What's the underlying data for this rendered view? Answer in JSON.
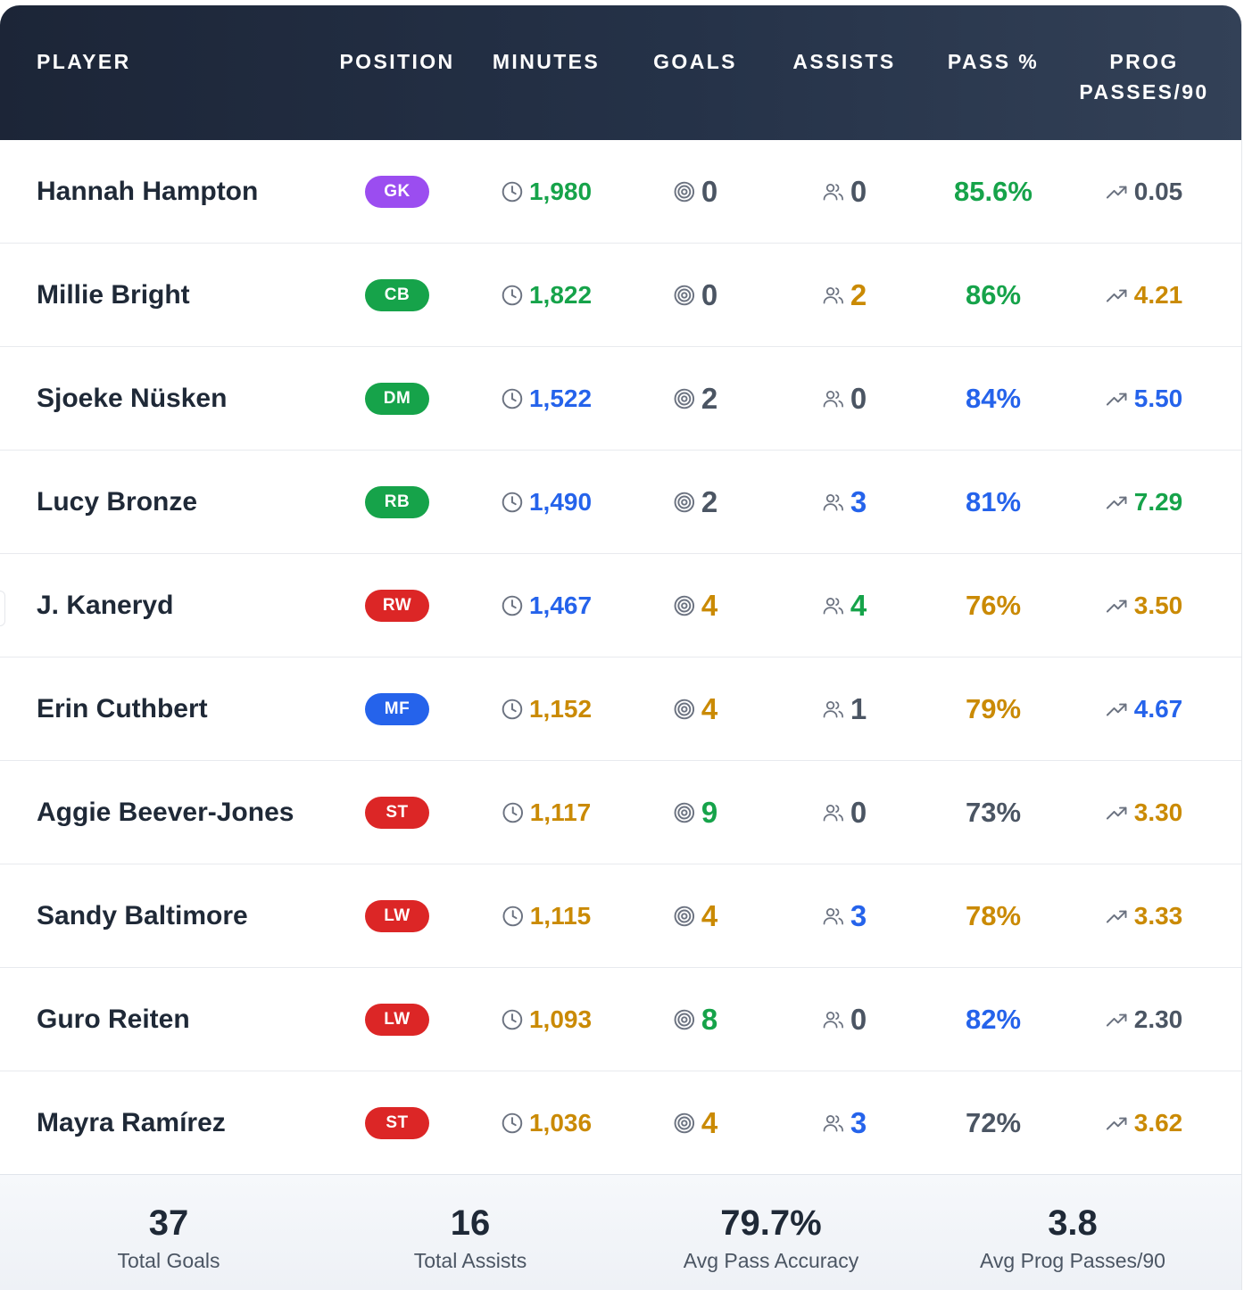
{
  "colors": {
    "green": "#16a34a",
    "blue": "#2563eb",
    "gold": "#ca8a04",
    "gray": "#4b5563",
    "badge_GK": "#9b4df0",
    "badge_CB": "#16a34a",
    "badge_DM": "#16a34a",
    "badge_RB": "#16a34a",
    "badge_RW": "#dc2626",
    "badge_MF": "#2563eb",
    "badge_ST": "#dc2626",
    "badge_LW": "#dc2626"
  },
  "icons": {
    "minutes": "clock-icon",
    "goals": "target-icon",
    "assists": "users-icon",
    "prog": "trending-up-icon"
  },
  "columns": {
    "player": "PLAYER",
    "position": "POSITION",
    "minutes": "MINUTES",
    "goals": "GOALS",
    "assists": "ASSISTS",
    "pass": "PASS %",
    "prog": "PROG PASSES/90"
  },
  "rows": [
    {
      "name": "Hannah Hampton",
      "position": "GK",
      "minutes": "1,980",
      "minutes_color": "green",
      "goals": "0",
      "goals_color": "gray",
      "assists": "0",
      "assists_color": "gray",
      "pass": "85.6%",
      "pass_color": "green",
      "prog": "0.05",
      "prog_color": "gray"
    },
    {
      "name": "Millie Bright",
      "position": "CB",
      "minutes": "1,822",
      "minutes_color": "green",
      "goals": "0",
      "goals_color": "gray",
      "assists": "2",
      "assists_color": "gold",
      "pass": "86%",
      "pass_color": "green",
      "prog": "4.21",
      "prog_color": "gold"
    },
    {
      "name": "Sjoeke Nüsken",
      "position": "DM",
      "minutes": "1,522",
      "minutes_color": "blue",
      "goals": "2",
      "goals_color": "gray",
      "assists": "0",
      "assists_color": "gray",
      "pass": "84%",
      "pass_color": "blue",
      "prog": "5.50",
      "prog_color": "blue"
    },
    {
      "name": "Lucy Bronze",
      "position": "RB",
      "minutes": "1,490",
      "minutes_color": "blue",
      "goals": "2",
      "goals_color": "gray",
      "assists": "3",
      "assists_color": "blue",
      "pass": "81%",
      "pass_color": "blue",
      "prog": "7.29",
      "prog_color": "green"
    },
    {
      "name": "J. Kaneryd",
      "position": "RW",
      "minutes": "1,467",
      "minutes_color": "blue",
      "goals": "4",
      "goals_color": "gold",
      "assists": "4",
      "assists_color": "green",
      "pass": "76%",
      "pass_color": "gold",
      "prog": "3.50",
      "prog_color": "gold"
    },
    {
      "name": "Erin Cuthbert",
      "position": "MF",
      "minutes": "1,152",
      "minutes_color": "gold",
      "goals": "4",
      "goals_color": "gold",
      "assists": "1",
      "assists_color": "gray",
      "pass": "79%",
      "pass_color": "gold",
      "prog": "4.67",
      "prog_color": "blue"
    },
    {
      "name": "Aggie Beever-Jones",
      "position": "ST",
      "minutes": "1,117",
      "minutes_color": "gold",
      "goals": "9",
      "goals_color": "green",
      "assists": "0",
      "assists_color": "gray",
      "pass": "73%",
      "pass_color": "gray",
      "prog": "3.30",
      "prog_color": "gold"
    },
    {
      "name": "Sandy Baltimore",
      "position": "LW",
      "minutes": "1,115",
      "minutes_color": "gold",
      "goals": "4",
      "goals_color": "gold",
      "assists": "3",
      "assists_color": "blue",
      "pass": "78%",
      "pass_color": "gold",
      "prog": "3.33",
      "prog_color": "gold"
    },
    {
      "name": "Guro Reiten",
      "position": "LW",
      "minutes": "1,093",
      "minutes_color": "gold",
      "goals": "8",
      "goals_color": "green",
      "assists": "0",
      "assists_color": "gray",
      "pass": "82%",
      "pass_color": "blue",
      "prog": "2.30",
      "prog_color": "gray"
    },
    {
      "name": "Mayra Ramírez",
      "position": "ST",
      "minutes": "1,036",
      "minutes_color": "gold",
      "goals": "4",
      "goals_color": "gold",
      "assists": "3",
      "assists_color": "blue",
      "pass": "72%",
      "pass_color": "gray",
      "prog": "3.62",
      "prog_color": "gold"
    }
  ],
  "summary": [
    {
      "value": "37",
      "label": "Total Goals"
    },
    {
      "value": "16",
      "label": "Total Assists"
    },
    {
      "value": "79.7%",
      "label": "Avg Pass Accuracy"
    },
    {
      "value": "3.8",
      "label": "Avg Prog Passes/90"
    }
  ]
}
